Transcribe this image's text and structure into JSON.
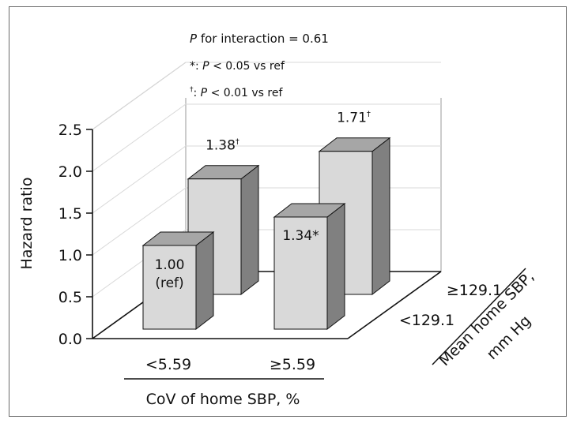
{
  "chart_data": {
    "type": "bar",
    "variant": "3d",
    "ylabel": "Hazard ratio",
    "ylim": [
      0,
      2.5
    ],
    "yticks": [
      "0.0",
      "0.5",
      "1.0",
      "1.5",
      "2.0",
      "2.5"
    ],
    "x_axis": {
      "label": "CoV of home SBP, %",
      "categories": [
        "<5.59",
        "≥5.59"
      ]
    },
    "depth_axis": {
      "label_line1": "Mean home SBP,",
      "label_line2": "mm Hg",
      "categories": [
        "<129.1",
        "≥129.1"
      ]
    },
    "grid": true,
    "bars": [
      {
        "cov": "<5.59",
        "sbp": "<129.1",
        "value": 1.0,
        "label": "1.00",
        "label2": "(ref)"
      },
      {
        "cov": "<5.59",
        "sbp": "≥129.1",
        "value": 1.38,
        "label": "1.38",
        "mark": "†"
      },
      {
        "cov": "≥5.59",
        "sbp": "<129.1",
        "value": 1.34,
        "label": "1.34*",
        "mark": ""
      },
      {
        "cov": "≥5.59",
        "sbp": "≥129.1",
        "value": 1.71,
        "label": "1.71",
        "mark": "†"
      }
    ],
    "annotations": {
      "interaction_p": "P",
      "interaction_rest": " for interaction = 0.61",
      "note1_sym": "*: ",
      "note1_p": "P",
      "note1_rest": " < 0.05 vs ref",
      "note2_sym": "†",
      "note2_colon": ": ",
      "note2_p": "P",
      "note2_rest": " < 0.01 vs ref"
    },
    "colors": {
      "front": "#d9d9d9",
      "top": "#a6a6a6",
      "side": "#808080",
      "grid": "#d9d9d9"
    }
  }
}
